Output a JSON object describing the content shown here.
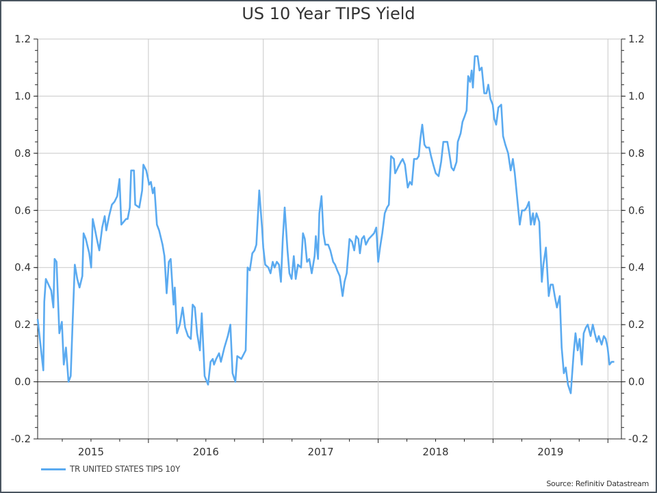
{
  "chart_data": {
    "type": "line",
    "title": "US 10 Year TIPS Yield",
    "xlabel": "",
    "ylabel": "",
    "ylim": [
      -0.2,
      1.2
    ],
    "xlim": [
      "2015-01-14",
      "2020-02-13"
    ],
    "yticks": [
      "1.2",
      "1.0",
      "0.8",
      "0.6",
      "0.4",
      "0.2",
      "0.0",
      "-0.2"
    ],
    "xticks": [
      "2015",
      "2016",
      "2017",
      "2018",
      "2019"
    ],
    "grid": true,
    "legend_position": "bottom-left",
    "source": "Source: Refinitiv Datastream",
    "series": [
      {
        "name": "TR UNITED STATES TIPS 10Y",
        "color": "#5aaaf0",
        "points": [
          [
            "2015-01-14",
            0.22
          ],
          [
            "2015-02-01",
            0.04
          ],
          [
            "2015-02-04",
            0.28
          ],
          [
            "2015-02-09",
            0.36
          ],
          [
            "2015-02-26",
            0.32
          ],
          [
            "2015-03-05",
            0.26
          ],
          [
            "2015-03-09",
            0.43
          ],
          [
            "2015-03-15",
            0.42
          ],
          [
            "2015-03-24",
            0.17
          ],
          [
            "2015-04-01",
            0.21
          ],
          [
            "2015-04-07",
            0.06
          ],
          [
            "2015-04-14",
            0.12
          ],
          [
            "2015-04-22",
            0.0
          ],
          [
            "2015-04-29",
            0.02
          ],
          [
            "2015-05-05",
            0.2
          ],
          [
            "2015-05-12",
            0.41
          ],
          [
            "2015-05-20",
            0.36
          ],
          [
            "2015-05-27",
            0.33
          ],
          [
            "2015-06-05",
            0.37
          ],
          [
            "2015-06-09",
            0.52
          ],
          [
            "2015-06-16",
            0.5
          ],
          [
            "2015-06-27",
            0.45
          ],
          [
            "2015-07-03",
            0.4
          ],
          [
            "2015-07-08",
            0.57
          ],
          [
            "2015-07-14",
            0.54
          ],
          [
            "2015-07-21",
            0.5
          ],
          [
            "2015-07-29",
            0.46
          ],
          [
            "2015-08-07",
            0.54
          ],
          [
            "2015-08-15",
            0.58
          ],
          [
            "2015-08-20",
            0.53
          ],
          [
            "2015-08-29",
            0.58
          ],
          [
            "2015-09-07",
            0.62
          ],
          [
            "2015-09-15",
            0.63
          ],
          [
            "2015-09-24",
            0.65
          ],
          [
            "2015-10-01",
            0.71
          ],
          [
            "2015-10-07",
            0.55
          ],
          [
            "2015-10-22",
            0.57
          ],
          [
            "2015-10-27",
            0.57
          ],
          [
            "2015-11-03",
            0.61
          ],
          [
            "2015-11-07",
            0.74
          ],
          [
            "2015-11-16",
            0.74
          ],
          [
            "2015-11-20",
            0.62
          ],
          [
            "2015-12-03",
            0.61
          ],
          [
            "2015-12-12",
            0.67
          ],
          [
            "2015-12-16",
            0.76
          ],
          [
            "2015-12-25",
            0.74
          ],
          [
            "2015-12-31",
            0.71
          ],
          [
            "2016-01-03",
            0.69
          ],
          [
            "2016-01-09",
            0.7
          ],
          [
            "2016-01-15",
            0.66
          ],
          [
            "2016-01-20",
            0.68
          ],
          [
            "2016-01-28",
            0.55
          ],
          [
            "2016-02-04",
            0.53
          ],
          [
            "2016-02-15",
            0.48
          ],
          [
            "2016-02-21",
            0.44
          ],
          [
            "2016-02-28",
            0.31
          ],
          [
            "2016-03-06",
            0.42
          ],
          [
            "2016-03-12",
            0.43
          ],
          [
            "2016-03-21",
            0.27
          ],
          [
            "2016-03-25",
            0.33
          ],
          [
            "2016-04-01",
            0.17
          ],
          [
            "2016-04-10",
            0.2
          ],
          [
            "2016-04-19",
            0.26
          ],
          [
            "2016-04-27",
            0.19
          ],
          [
            "2016-05-06",
            0.16
          ],
          [
            "2016-05-15",
            0.15
          ],
          [
            "2016-05-21",
            0.27
          ],
          [
            "2016-05-28",
            0.26
          ],
          [
            "2016-06-04",
            0.17
          ],
          [
            "2016-06-13",
            0.11
          ],
          [
            "2016-06-19",
            0.24
          ],
          [
            "2016-06-28",
            0.02
          ],
          [
            "2016-07-09",
            -0.01
          ],
          [
            "2016-07-17",
            0.07
          ],
          [
            "2016-07-24",
            0.08
          ],
          [
            "2016-07-28",
            0.06
          ],
          [
            "2016-08-04",
            0.08
          ],
          [
            "2016-08-13",
            0.1
          ],
          [
            "2016-08-19",
            0.07
          ],
          [
            "2016-08-30",
            0.12
          ],
          [
            "2016-09-10",
            0.16
          ],
          [
            "2016-09-18",
            0.2
          ],
          [
            "2016-09-25",
            0.03
          ],
          [
            "2016-10-04",
            0.0
          ],
          [
            "2016-10-10",
            0.09
          ],
          [
            "2016-10-23",
            0.08
          ],
          [
            "2016-11-06",
            0.11
          ],
          [
            "2016-11-12",
            0.4
          ],
          [
            "2016-11-19",
            0.39
          ],
          [
            "2016-11-27",
            0.45
          ],
          [
            "2016-12-04",
            0.46
          ],
          [
            "2016-12-10",
            0.48
          ],
          [
            "2016-12-19",
            0.67
          ],
          [
            "2016-12-28",
            0.54
          ],
          [
            "2017-01-01",
            0.47
          ],
          [
            "2017-01-07",
            0.41
          ],
          [
            "2017-01-17",
            0.4
          ],
          [
            "2017-01-24",
            0.38
          ],
          [
            "2017-01-31",
            0.42
          ],
          [
            "2017-02-06",
            0.4
          ],
          [
            "2017-02-13",
            0.42
          ],
          [
            "2017-02-20",
            0.41
          ],
          [
            "2017-02-26",
            0.35
          ],
          [
            "2017-03-04",
            0.5
          ],
          [
            "2017-03-10",
            0.61
          ],
          [
            "2017-03-19",
            0.46
          ],
          [
            "2017-03-25",
            0.38
          ],
          [
            "2017-04-01",
            0.36
          ],
          [
            "2017-04-08",
            0.44
          ],
          [
            "2017-04-14",
            0.36
          ],
          [
            "2017-04-21",
            0.41
          ],
          [
            "2017-05-01",
            0.4
          ],
          [
            "2017-05-07",
            0.52
          ],
          [
            "2017-05-13",
            0.5
          ],
          [
            "2017-05-20",
            0.42
          ],
          [
            "2017-05-27",
            0.43
          ],
          [
            "2017-06-04",
            0.38
          ],
          [
            "2017-06-13",
            0.44
          ],
          [
            "2017-06-17",
            0.51
          ],
          [
            "2017-06-24",
            0.43
          ],
          [
            "2017-06-28",
            0.59
          ],
          [
            "2017-07-05",
            0.65
          ],
          [
            "2017-07-11",
            0.52
          ],
          [
            "2017-07-17",
            0.48
          ],
          [
            "2017-07-26",
            0.48
          ],
          [
            "2017-08-02",
            0.46
          ],
          [
            "2017-08-11",
            0.42
          ],
          [
            "2017-08-17",
            0.41
          ],
          [
            "2017-08-24",
            0.39
          ],
          [
            "2017-09-01",
            0.37
          ],
          [
            "2017-09-10",
            0.3
          ],
          [
            "2017-09-16",
            0.35
          ],
          [
            "2017-09-23",
            0.38
          ],
          [
            "2017-10-02",
            0.5
          ],
          [
            "2017-10-10",
            0.49
          ],
          [
            "2017-10-17",
            0.46
          ],
          [
            "2017-10-23",
            0.51
          ],
          [
            "2017-10-30",
            0.5
          ],
          [
            "2017-11-04",
            0.45
          ],
          [
            "2017-11-10",
            0.5
          ],
          [
            "2017-11-17",
            0.51
          ],
          [
            "2017-11-23",
            0.48
          ],
          [
            "2017-12-02",
            0.5
          ],
          [
            "2017-12-19",
            0.52
          ],
          [
            "2017-12-26",
            0.54
          ],
          [
            "2018-01-01",
            0.42
          ],
          [
            "2018-01-07",
            0.47
          ],
          [
            "2018-01-14",
            0.52
          ],
          [
            "2018-01-22",
            0.59
          ],
          [
            "2018-01-29",
            0.61
          ],
          [
            "2018-02-04",
            0.62
          ],
          [
            "2018-02-11",
            0.79
          ],
          [
            "2018-02-20",
            0.78
          ],
          [
            "2018-02-24",
            0.73
          ],
          [
            "2018-03-05",
            0.75
          ],
          [
            "2018-03-14",
            0.77
          ],
          [
            "2018-03-20",
            0.78
          ],
          [
            "2018-03-27",
            0.76
          ],
          [
            "2018-04-05",
            0.68
          ],
          [
            "2018-04-12",
            0.7
          ],
          [
            "2018-04-18",
            0.69
          ],
          [
            "2018-04-25",
            0.78
          ],
          [
            "2018-05-04",
            0.78
          ],
          [
            "2018-05-10",
            0.79
          ],
          [
            "2018-05-15",
            0.85
          ],
          [
            "2018-05-21",
            0.9
          ],
          [
            "2018-05-28",
            0.83
          ],
          [
            "2018-06-03",
            0.82
          ],
          [
            "2018-06-12",
            0.82
          ],
          [
            "2018-06-18",
            0.79
          ],
          [
            "2018-06-25",
            0.76
          ],
          [
            "2018-07-03",
            0.73
          ],
          [
            "2018-07-12",
            0.72
          ],
          [
            "2018-07-20",
            0.77
          ],
          [
            "2018-07-27",
            0.84
          ],
          [
            "2018-08-02",
            0.84
          ],
          [
            "2018-08-09",
            0.84
          ],
          [
            "2018-08-15",
            0.8
          ],
          [
            "2018-08-22",
            0.75
          ],
          [
            "2018-08-29",
            0.74
          ],
          [
            "2018-09-07",
            0.77
          ],
          [
            "2018-09-11",
            0.84
          ],
          [
            "2018-09-20",
            0.87
          ],
          [
            "2018-09-26",
            0.91
          ],
          [
            "2018-10-03",
            0.93
          ],
          [
            "2018-10-09",
            0.95
          ],
          [
            "2018-10-14",
            1.07
          ],
          [
            "2018-10-20",
            1.05
          ],
          [
            "2018-10-25",
            1.09
          ],
          [
            "2018-10-29",
            1.03
          ],
          [
            "2018-11-04",
            1.14
          ],
          [
            "2018-11-13",
            1.14
          ],
          [
            "2018-11-19",
            1.09
          ],
          [
            "2018-11-26",
            1.1
          ],
          [
            "2018-12-04",
            1.01
          ],
          [
            "2018-12-11",
            1.01
          ],
          [
            "2018-12-17",
            1.04
          ],
          [
            "2018-12-24",
            0.99
          ],
          [
            "2018-12-31",
            0.97
          ],
          [
            "2019-01-05",
            0.92
          ],
          [
            "2019-01-11",
            0.9
          ],
          [
            "2019-01-18",
            0.96
          ],
          [
            "2019-01-27",
            0.97
          ],
          [
            "2019-02-02",
            0.86
          ],
          [
            "2019-02-09",
            0.83
          ],
          [
            "2019-02-18",
            0.8
          ],
          [
            "2019-02-26",
            0.74
          ],
          [
            "2019-03-05",
            0.78
          ],
          [
            "2019-03-11",
            0.73
          ],
          [
            "2019-03-18",
            0.65
          ],
          [
            "2019-03-27",
            0.55
          ],
          [
            "2019-04-03",
            0.6
          ],
          [
            "2019-04-11",
            0.6
          ],
          [
            "2019-04-18",
            0.61
          ],
          [
            "2019-04-25",
            0.63
          ],
          [
            "2019-05-01",
            0.55
          ],
          [
            "2019-05-08",
            0.59
          ],
          [
            "2019-05-12",
            0.55
          ],
          [
            "2019-05-19",
            0.59
          ],
          [
            "2019-05-28",
            0.56
          ],
          [
            "2019-06-05",
            0.35
          ],
          [
            "2019-06-10",
            0.41
          ],
          [
            "2019-06-18",
            0.47
          ],
          [
            "2019-06-27",
            0.3
          ],
          [
            "2019-07-03",
            0.34
          ],
          [
            "2019-07-10",
            0.34
          ],
          [
            "2019-07-16",
            0.3
          ],
          [
            "2019-07-23",
            0.26
          ],
          [
            "2019-08-01",
            0.3
          ],
          [
            "2019-08-07",
            0.12
          ],
          [
            "2019-08-14",
            0.03
          ],
          [
            "2019-08-20",
            0.05
          ],
          [
            "2019-08-27",
            -0.01
          ],
          [
            "2019-09-05",
            -0.04
          ],
          [
            "2019-09-14",
            0.1
          ],
          [
            "2019-09-20",
            0.17
          ],
          [
            "2019-09-27",
            0.11
          ],
          [
            "2019-10-03",
            0.15
          ],
          [
            "2019-10-10",
            0.06
          ],
          [
            "2019-10-16",
            0.17
          ],
          [
            "2019-10-23",
            0.19
          ],
          [
            "2019-10-29",
            0.2
          ],
          [
            "2019-11-07",
            0.16
          ],
          [
            "2019-11-14",
            0.2
          ],
          [
            "2019-11-20",
            0.17
          ],
          [
            "2019-11-27",
            0.14
          ],
          [
            "2019-12-03",
            0.16
          ],
          [
            "2019-12-12",
            0.13
          ],
          [
            "2019-12-19",
            0.16
          ],
          [
            "2019-12-25",
            0.15
          ],
          [
            "2019-12-31",
            0.12
          ],
          [
            "2020-01-06",
            0.06
          ],
          [
            "2020-01-13",
            0.07
          ],
          [
            "2020-01-21",
            0.07
          ]
        ]
      }
    ]
  }
}
